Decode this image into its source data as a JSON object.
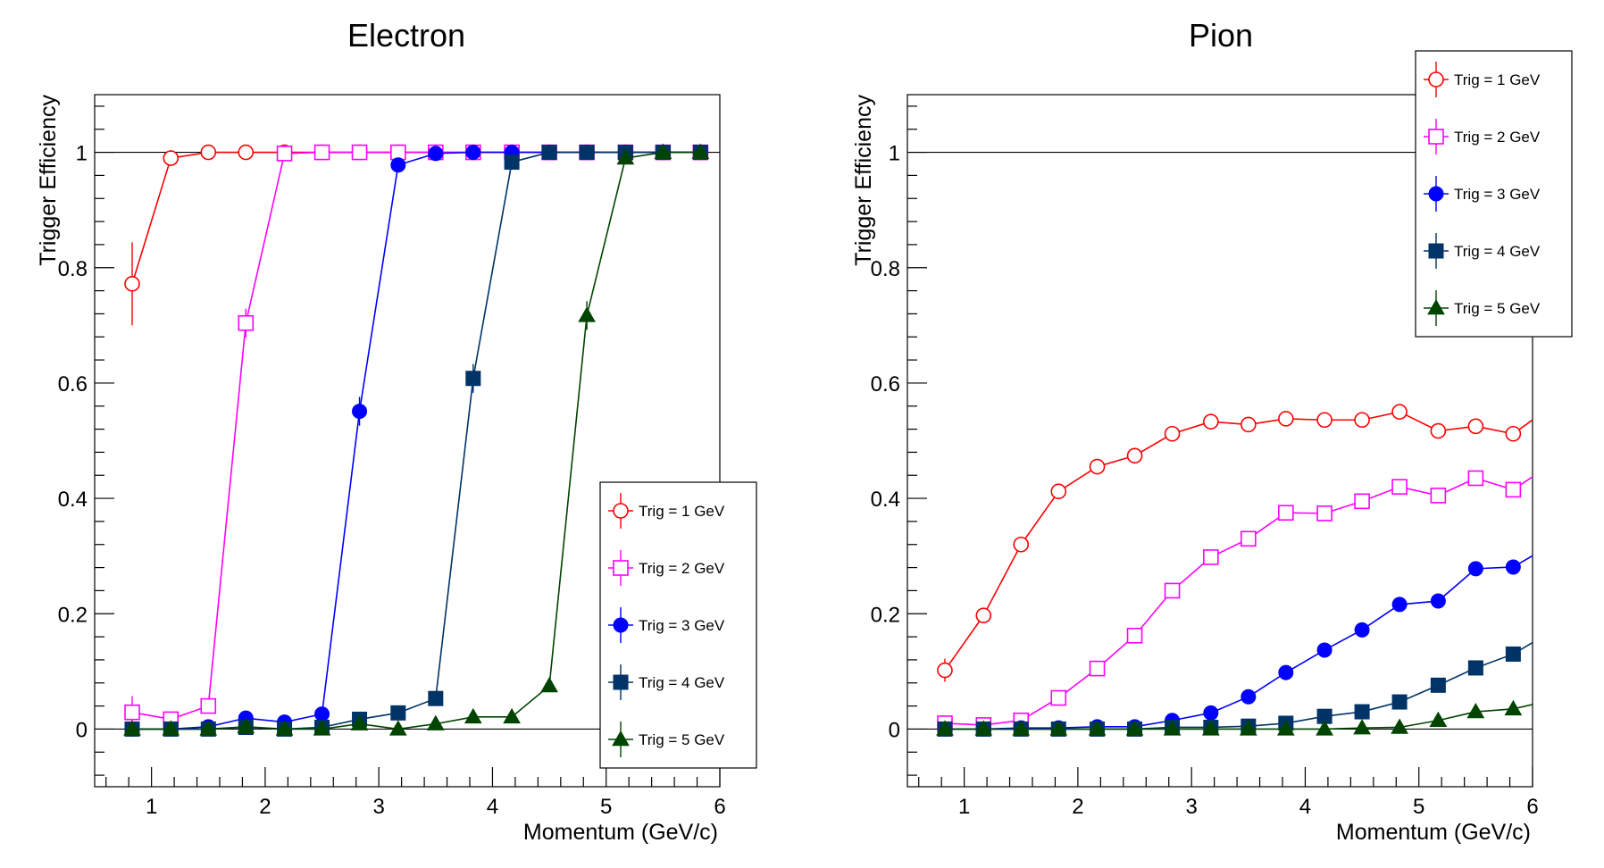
{
  "chart_data": [
    {
      "type": "line",
      "title": "Electron",
      "xlabel": "Momentum (GeV/c)",
      "ylabel": "Trigger Efficiency",
      "xlim": [
        0.5,
        6.0
      ],
      "ylim": [
        -0.1,
        1.1
      ],
      "xticks": [
        "1",
        "2",
        "3",
        "4",
        "5",
        "6"
      ],
      "yticks": [
        "0",
        "0.2",
        "0.4",
        "0.6",
        "0.8",
        "1"
      ],
      "legend_position": "bottom-right",
      "x": [
        0.83,
        1.17,
        1.5,
        1.83,
        2.17,
        2.5,
        2.83,
        3.17,
        3.5,
        3.83,
        4.17,
        4.5,
        4.83,
        5.17,
        5.5,
        5.83
      ],
      "series": [
        {
          "name": "Trig = 1 GeV",
          "color": "#ff0000",
          "marker": "open-circle",
          "values": [
            0.772,
            0.99,
            1.0,
            1.0,
            1.0,
            1.0,
            1.0,
            1.0,
            1.0,
            1.0,
            1.0,
            1.0,
            1.0,
            1.0,
            1.0,
            1.0
          ],
          "errors": [
            0.072,
            0.005,
            0,
            0,
            0,
            0,
            0,
            0,
            0,
            0,
            0,
            0,
            0,
            0,
            0,
            0
          ]
        },
        {
          "name": "Trig = 2 GeV",
          "color": "#ff00ff",
          "marker": "open-square",
          "values": [
            0.029,
            0.017,
            0.04,
            0.704,
            0.998,
            1.0,
            1.0,
            1.0,
            1.0,
            1.0,
            1.0,
            1.0,
            1.0,
            1.0,
            1.0,
            1.0
          ],
          "errors": [
            0.028,
            0.005,
            0.01,
            0.025,
            0.002,
            0,
            0,
            0,
            0,
            0,
            0,
            0,
            0,
            0,
            0,
            0
          ]
        },
        {
          "name": "Trig = 3 GeV",
          "color": "#0000ff",
          "marker": "filled-circle",
          "values": [
            0.0,
            0.0,
            0.004,
            0.019,
            0.012,
            0.026,
            0.551,
            0.978,
            0.998,
            1.0,
            1.0,
            1.0,
            1.0,
            1.0,
            1.0,
            1.0
          ],
          "errors": [
            0,
            0,
            0,
            0.004,
            0.003,
            0.004,
            0.025,
            0.004,
            0.002,
            0,
            0,
            0,
            0,
            0,
            0,
            0
          ]
        },
        {
          "name": "Trig = 4 GeV",
          "color": "#003366",
          "marker": "filled-square",
          "values": [
            0.0,
            0.0,
            0.0,
            0.003,
            0.0,
            0.003,
            0.017,
            0.028,
            0.053,
            0.608,
            0.983,
            1.0,
            1.0,
            1.0,
            1.0,
            1.0
          ],
          "errors": [
            0,
            0,
            0,
            0,
            0,
            0,
            0.004,
            0.004,
            0.005,
            0.025,
            0.005,
            0,
            0,
            0,
            0,
            0
          ]
        },
        {
          "name": "Trig = 5 GeV",
          "color": "#004400",
          "marker": "filled-triangle",
          "values": [
            0.0,
            0.0,
            0.0,
            0.004,
            0.0,
            0.0,
            0.009,
            0.0,
            0.009,
            0.021,
            0.021,
            0.075,
            0.717,
            0.99,
            1.0,
            1.0
          ],
          "errors": [
            0,
            0,
            0,
            0,
            0,
            0,
            0.003,
            0,
            0.003,
            0.004,
            0.004,
            0.008,
            0.025,
            0.004,
            0,
            0
          ]
        }
      ]
    },
    {
      "type": "line",
      "title": "Pion",
      "xlabel": "Momentum (GeV/c)",
      "ylabel": "Trigger Efficiency",
      "xlim": [
        0.5,
        6.0
      ],
      "ylim": [
        -0.1,
        1.1
      ],
      "xticks": [
        "1",
        "2",
        "3",
        "4",
        "5",
        "6"
      ],
      "yticks": [
        "0",
        "0.2",
        "0.4",
        "0.6",
        "0.8",
        "1"
      ],
      "legend_position": "top-right",
      "x": [
        0.83,
        1.17,
        1.5,
        1.83,
        2.17,
        2.5,
        2.83,
        3.17,
        3.5,
        3.83,
        4.17,
        4.5,
        4.83,
        5.17,
        5.5,
        5.83,
        6.17
      ],
      "series": [
        {
          "name": "Trig = 1 GeV",
          "color": "#ff0000",
          "marker": "open-circle",
          "values": [
            0.102,
            0.197,
            0.32,
            0.412,
            0.455,
            0.474,
            0.512,
            0.533,
            0.528,
            0.538,
            0.536,
            0.536,
            0.55,
            0.517,
            0.525,
            0.512,
            0.56
          ],
          "errors": [
            0.02,
            0.01,
            0.008,
            0.006,
            0.005,
            0.005,
            0.005,
            0.005,
            0.005,
            0.005,
            0.005,
            0.005,
            0.005,
            0.005,
            0.005,
            0.005,
            0.005
          ]
        },
        {
          "name": "Trig = 2 GeV",
          "color": "#ff00ff",
          "marker": "open-square",
          "values": [
            0.01,
            0.007,
            0.015,
            0.054,
            0.105,
            0.162,
            0.24,
            0.298,
            0.33,
            0.375,
            0.374,
            0.395,
            0.42,
            0.405,
            0.435,
            0.415,
            0.46
          ],
          "errors": [
            0.005,
            0.003,
            0.003,
            0.004,
            0.005,
            0.005,
            0.005,
            0.005,
            0.005,
            0.005,
            0.005,
            0.005,
            0.005,
            0.005,
            0.005,
            0.005,
            0.005
          ]
        },
        {
          "name": "Trig = 3 GeV",
          "color": "#0000ff",
          "marker": "filled-circle",
          "values": [
            0.0,
            0.0,
            0.002,
            0.002,
            0.004,
            0.004,
            0.015,
            0.028,
            0.056,
            0.098,
            0.137,
            0.172,
            0.216,
            0.222,
            0.278,
            0.281,
            0.32
          ],
          "errors": [
            0,
            0,
            0,
            0,
            0,
            0,
            0.003,
            0.003,
            0.004,
            0.004,
            0.004,
            0.005,
            0.005,
            0.005,
            0.005,
            0.005,
            0.005
          ]
        },
        {
          "name": "Trig = 4 GeV",
          "color": "#003366",
          "marker": "filled-square",
          "values": [
            0.0,
            0.0,
            0.0,
            0.0,
            0.0,
            0.0,
            0.003,
            0.003,
            0.005,
            0.01,
            0.022,
            0.03,
            0.047,
            0.076,
            0.106,
            0.13,
            0.17
          ],
          "errors": [
            0,
            0,
            0,
            0,
            0,
            0,
            0,
            0,
            0.002,
            0.002,
            0.003,
            0.003,
            0.004,
            0.004,
            0.005,
            0.005,
            0.005
          ]
        },
        {
          "name": "Trig = 5 GeV",
          "color": "#004400",
          "marker": "filled-triangle",
          "values": [
            0.0,
            0.0,
            0.0,
            0.0,
            0.0,
            0.0,
            0.0,
            0.0,
            0.0,
            0.0,
            0.0,
            0.002,
            0.003,
            0.015,
            0.03,
            0.035,
            0.05
          ],
          "errors": [
            0,
            0,
            0,
            0,
            0,
            0,
            0,
            0,
            0,
            0,
            0,
            0,
            0,
            0.002,
            0.003,
            0.003,
            0.004
          ]
        }
      ]
    }
  ]
}
